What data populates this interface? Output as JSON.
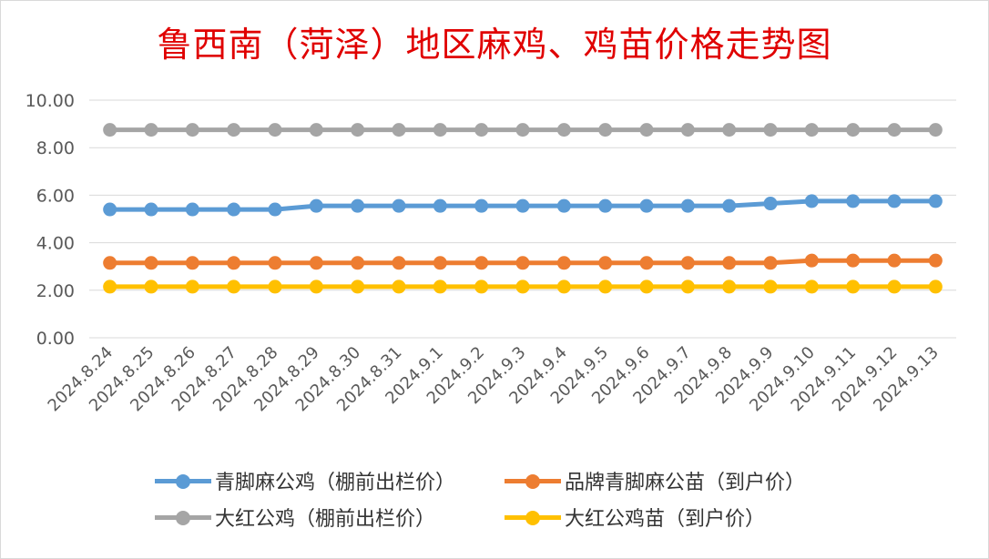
{
  "chart_data": {
    "type": "line",
    "title": "鲁西南（菏泽）地区麻鸡、鸡苗价格走势图",
    "xlabel": "",
    "ylabel": "",
    "ylim": [
      0,
      10
    ],
    "yticks": [
      "0.00",
      "2.00",
      "4.00",
      "6.00",
      "8.00",
      "10.00"
    ],
    "grid": true,
    "legend_position": "bottom",
    "categories": [
      "2024.8.24",
      "2024.8.25",
      "2024.8.26",
      "2024.8.27",
      "2024.8.28",
      "2024.8.29",
      "2024.8.30",
      "2024.8.31",
      "2024.9.1",
      "2024.9.2",
      "2024.9.3",
      "2024.9.4",
      "2024.9.5",
      "2024.9.6",
      "2024.9.7",
      "2024.9.8",
      "2024.9.9",
      "2024.9.10",
      "2024.9.11",
      "2024.9.12",
      "2024.9.13"
    ],
    "series": [
      {
        "name": "青脚麻公鸡（棚前出栏价）",
        "color": "#5b9bd5",
        "values": [
          5.4,
          5.4,
          5.4,
          5.4,
          5.4,
          5.55,
          5.55,
          5.55,
          5.55,
          5.55,
          5.55,
          5.55,
          5.55,
          5.55,
          5.55,
          5.55,
          5.65,
          5.75,
          5.75,
          5.75,
          5.75
        ]
      },
      {
        "name": "品牌青脚麻公苗（到户价）",
        "color": "#ed7d31",
        "values": [
          3.15,
          3.15,
          3.15,
          3.15,
          3.15,
          3.15,
          3.15,
          3.15,
          3.15,
          3.15,
          3.15,
          3.15,
          3.15,
          3.15,
          3.15,
          3.15,
          3.15,
          3.25,
          3.25,
          3.25,
          3.25
        ]
      },
      {
        "name": "大红公鸡（棚前出栏价）",
        "color": "#a5a5a5",
        "values": [
          8.75,
          8.75,
          8.75,
          8.75,
          8.75,
          8.75,
          8.75,
          8.75,
          8.75,
          8.75,
          8.75,
          8.75,
          8.75,
          8.75,
          8.75,
          8.75,
          8.75,
          8.75,
          8.75,
          8.75,
          8.75
        ]
      },
      {
        "name": "大红公鸡苗（到户价）",
        "color": "#ffc000",
        "values": [
          2.15,
          2.15,
          2.15,
          2.15,
          2.15,
          2.15,
          2.15,
          2.15,
          2.15,
          2.15,
          2.15,
          2.15,
          2.15,
          2.15,
          2.15,
          2.15,
          2.15,
          2.15,
          2.15,
          2.15,
          2.15
        ]
      }
    ]
  }
}
